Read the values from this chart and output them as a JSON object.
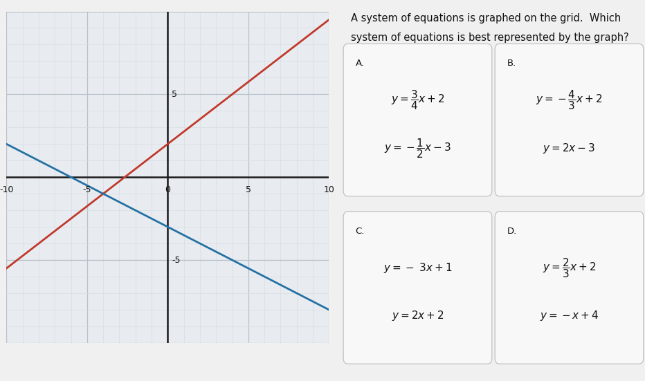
{
  "title_line1": "A system of equations is graphed on the grid.  Which",
  "title_line2": "system of equations is best represented by the graph?",
  "graph_xlim": [
    -10,
    10
  ],
  "graph_ylim": [
    -10,
    10
  ],
  "grid_minor_color": "#d8dde5",
  "grid_major_color": "#b8bfc8",
  "graph_bg": "#e8ecf0",
  "outer_bg": "#e8ecf0",
  "right_bg": "#f0f0f0",
  "red_line": {
    "slope": 0.75,
    "intercept": 2,
    "color": "#c0392b"
  },
  "blue_line": {
    "slope": -0.5,
    "intercept": -3,
    "color": "#2471a3"
  },
  "option_labels": [
    "A",
    "B",
    "C",
    "D"
  ],
  "box_bg": "#f8f8f8",
  "box_edge": "#bbbbbb",
  "text_color": "#111111",
  "option_eqs": {
    "A": [
      "$y = \\dfrac{3}{4}x + 2$",
      "$y = -\\dfrac{1}{2}x - 3$"
    ],
    "B": [
      "$y = -\\dfrac{4}{3}x + 2$",
      "$y = 2x - 3$"
    ],
    "C": [
      "$y = -\\ 3x + 1$",
      "$y = 2x + 2$"
    ],
    "D": [
      "$y = \\dfrac{2}{3}x + 2$",
      "$y = -x + 4$"
    ]
  }
}
